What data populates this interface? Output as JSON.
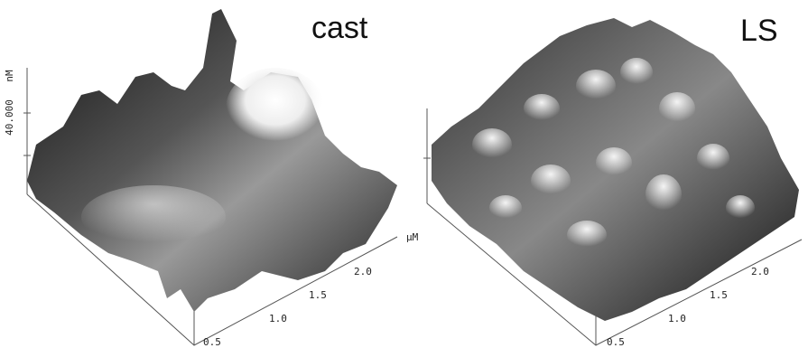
{
  "panels": [
    {
      "label": "cast",
      "z_unit": "nM",
      "z_tick": "40.000",
      "x_unit": "µM",
      "x_ticks": [
        "0.5",
        "1.0",
        "1.5",
        "2.0"
      ]
    },
    {
      "label": "LS",
      "x_ticks": [
        "0.5",
        "1.0",
        "1.5",
        "2.0"
      ]
    }
  ]
}
